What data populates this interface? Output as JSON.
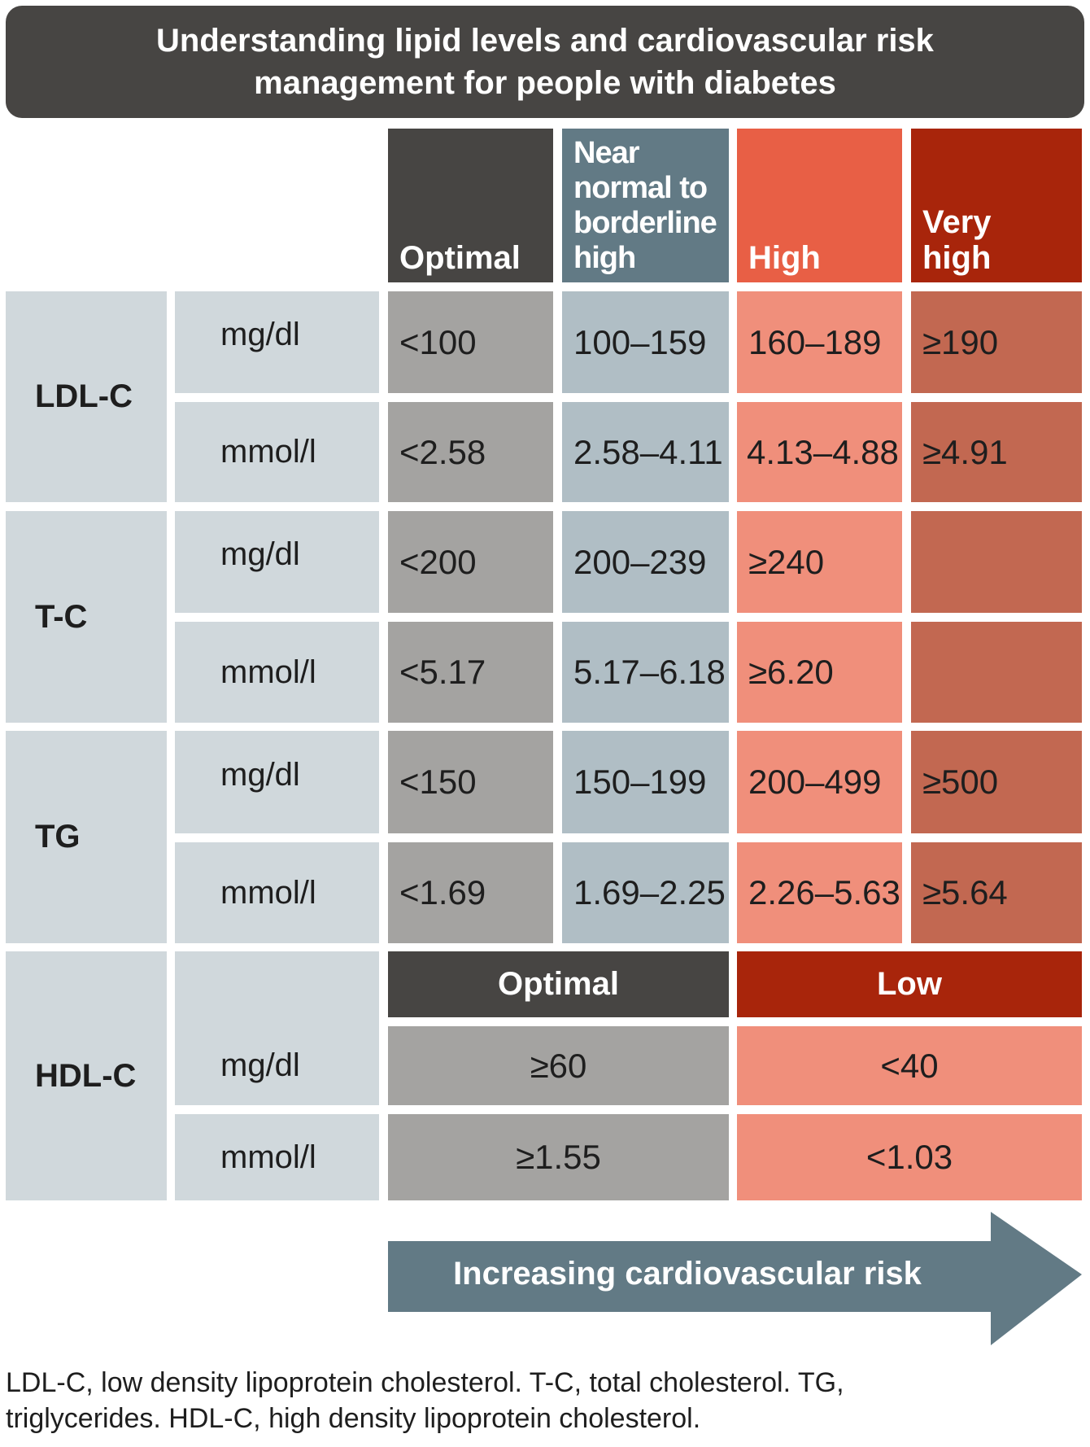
{
  "title": {
    "line1": "Understanding lipid levels and cardiovascular risk",
    "line2": "management for people with diabetes"
  },
  "headers": {
    "optimal": [
      "Optimal"
    ],
    "near": [
      "Near",
      "normal to",
      "borderline",
      "high"
    ],
    "high": [
      "High"
    ],
    "very_high": [
      "Very",
      "high"
    ]
  },
  "rows": [
    {
      "param": "LDL-C",
      "units": [
        {
          "unit": "mg/dl",
          "values": [
            "<100",
            "100–159",
            "160–189",
            "≥190"
          ]
        },
        {
          "unit": "mmol/l",
          "values": [
            "<2.58",
            "2.58–4.11",
            "4.13–4.88",
            "≥4.91"
          ]
        }
      ]
    },
    {
      "param": "T-C",
      "units": [
        {
          "unit": "mg/dl",
          "values": [
            "<200",
            "200–239",
            "≥240",
            ""
          ]
        },
        {
          "unit": "mmol/l",
          "values": [
            "<5.17",
            "5.17–6.18",
            "≥6.20",
            ""
          ]
        }
      ]
    },
    {
      "param": "TG",
      "units": [
        {
          "unit": "mg/dl",
          "values": [
            "<150",
            "150–199",
            "200–499",
            "≥500"
          ]
        },
        {
          "unit": "mmol/l",
          "values": [
            "<1.69",
            "1.69–2.25",
            "2.26–5.63",
            "≥5.64"
          ]
        }
      ]
    }
  ],
  "hdl": {
    "param": "HDL-C",
    "optimal_label": "Optimal",
    "low_label": "Low",
    "units": [
      {
        "unit": "mg/dl",
        "values": [
          "≥60",
          "<40"
        ]
      },
      {
        "unit": "mmol/l",
        "values": [
          "≥1.55",
          "<1.03"
        ]
      }
    ]
  },
  "arrow": {
    "label": "Increasing cardiovascular risk"
  },
  "footnote": {
    "line1": "LDL-C, low density lipoprotein cholesterol. T-C, total cholesterol. TG,",
    "line2": "triglycerides. HDL-C, high density lipoprotein cholesterol."
  },
  "colors": {
    "title_bg": "#474543",
    "optimal": "#474543",
    "near_normal": "#627a85",
    "high": "#e85f45",
    "very_high": "#a8250b",
    "label_cell": "#d0d8dc",
    "optimal_cell": "#a4a3a1",
    "near_cell": "#b0bec5",
    "high_cell": "#f08f7b",
    "very_high_cell": "#c26851",
    "arrow": "#627a85"
  }
}
